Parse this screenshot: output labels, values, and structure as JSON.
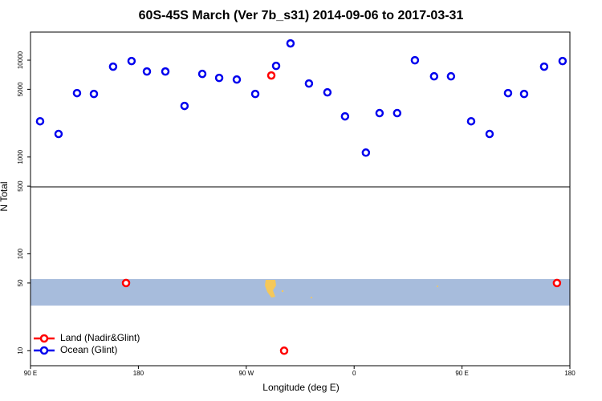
{
  "chart_data": {
    "type": "scatter",
    "title": "60S-45S March (Ver 7b_s31)   2014-09-06 to 2017-03-31",
    "xlabel": "Longitude (deg E)",
    "ylabel": "N Total",
    "xlim": [
      90,
      540
    ],
    "xticks": [
      {
        "value": 90,
        "label": "90 E"
      },
      {
        "value": 180,
        "label": "180"
      },
      {
        "value": 270,
        "label": "90 W"
      },
      {
        "value": 360,
        "label": "0"
      },
      {
        "value": 450,
        "label": "90 E"
      },
      {
        "value": 540,
        "label": "180"
      }
    ],
    "ylim": [
      7,
      19500
    ],
    "ylog": true,
    "yticks": [
      10,
      50,
      100,
      500,
      1000,
      5000,
      10000
    ],
    "legend": "bottom-left",
    "series": [
      {
        "name": "Land (Nadir&Glint)",
        "color": "#ff0000",
        "x": [
          169.7,
          290.9,
          301.6,
          529.2
        ],
        "values": [
          50,
          6950,
          10,
          50
        ]
      },
      {
        "name": "Ocean (Glint)",
        "color": "#0000ee",
        "x": [
          98,
          113.4,
          128.8,
          142.9,
          158.9,
          174.3,
          187.1,
          202.5,
          218.5,
          233.3,
          247.4,
          262.1,
          277.5,
          294.9,
          306.9,
          322.3,
          337.7,
          352.4,
          369.8,
          381.2,
          395.9,
          410.7,
          426.7,
          440.8,
          457.6,
          473,
          488.4,
          501.8,
          518.5,
          533.9
        ],
        "values": [
          2340,
          1730,
          4570,
          4480,
          8570,
          9790,
          7640,
          7640,
          3370,
          7210,
          6560,
          6310,
          4480,
          8730,
          14900,
          5740,
          4650,
          2630,
          1110,
          2840,
          2840,
          9980,
          6810,
          6810,
          2340,
          1730,
          4570,
          4480,
          8570,
          9790
        ]
      }
    ]
  }
}
